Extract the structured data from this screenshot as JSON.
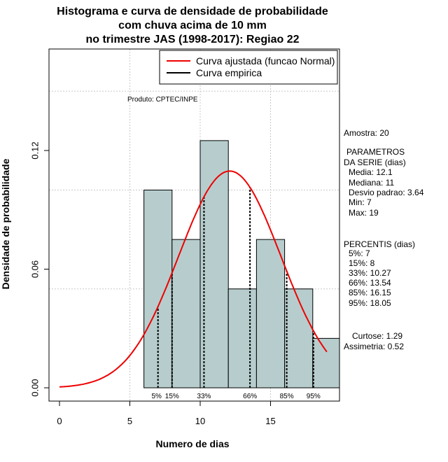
{
  "chart_data": {
    "type": "bar",
    "title_lines": [
      "Histograma e curva de densidade de probabilidade",
      "com chuva acima de 10 mm",
      "no trimestre JAS (1998-2017): Regiao 22"
    ],
    "xlabel": "Numero de dias",
    "ylabel": "Densidade de probabilidade",
    "xlim": [
      -0.7,
      19.9
    ],
    "ylim": [
      -0.007,
      0.172
    ],
    "x_ticks": [
      0,
      5,
      10,
      15
    ],
    "y_ticks": [
      0.0,
      0.06,
      0.12
    ],
    "x_tick_labels": [
      "0",
      "5",
      "10",
      "15"
    ],
    "y_tick_labels": [
      "0.00",
      "0.06",
      "0.12"
    ],
    "grid_x": [
      5,
      10,
      15
    ],
    "grid_y": [
      0.05,
      0.1,
      0.15
    ],
    "bins": [
      {
        "from": 6,
        "to": 8,
        "density": 0.1
      },
      {
        "from": 8,
        "to": 10,
        "density": 0.075
      },
      {
        "from": 10,
        "to": 12,
        "density": 0.125
      },
      {
        "from": 12,
        "to": 14,
        "density": 0.05
      },
      {
        "from": 14,
        "to": 16,
        "density": 0.075
      },
      {
        "from": 16,
        "to": 18,
        "density": 0.05
      },
      {
        "from": 18,
        "to": 20,
        "density": 0.025
      }
    ],
    "bar_color": "#b7cdcd",
    "curve": {
      "name": "Curva ajustada (funcao Normal)",
      "mean": 12.1,
      "sd": 3.64,
      "from": 0,
      "to": 19,
      "color": "#ee0000"
    },
    "empirical_name": "Curva empirica",
    "empirical_color": "#000000",
    "percentile_lines": [
      {
        "label": "5%",
        "x": 7
      },
      {
        "label": "15%",
        "x": 8
      },
      {
        "label": "33%",
        "x": 10.27
      },
      {
        "label": "66%",
        "x": 13.54
      },
      {
        "label": "85%",
        "x": 16.15
      },
      {
        "label": "95%",
        "x": 18.05
      }
    ],
    "product_note": "Produto: CPTEC/INPE",
    "stats_sample": "Amostra: 20",
    "stats_params": [
      "PARAMETROS",
      "DA SERIE (dias)",
      "Media: 12.1",
      "Mediana: 11",
      "Desvio padrao: 3.64",
      "Min: 7",
      "Max: 19"
    ],
    "stats_percentis": [
      "PERCENTIS (dias)",
      "5%: 7",
      "15%: 8",
      "33%: 10.27",
      "66%: 13.54",
      "85%: 16.15",
      "95%: 18.05"
    ],
    "stats_shape": [
      "Curtose: 1.29",
      "Assimetria: 0.52"
    ]
  }
}
